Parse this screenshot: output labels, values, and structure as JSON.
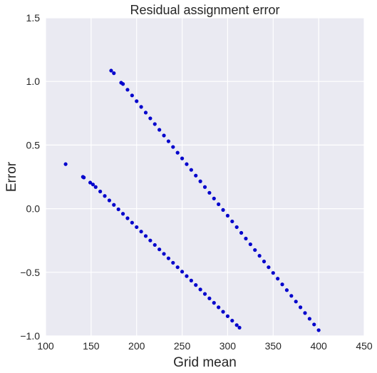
{
  "chart_data": {
    "type": "scatter",
    "title": "Residual assignment error",
    "xlabel": "Grid mean",
    "ylabel": "Error",
    "xlim": [
      100,
      450
    ],
    "ylim": [
      -1.0,
      1.5
    ],
    "x_ticks": [
      100,
      150,
      200,
      250,
      300,
      350,
      400,
      450
    ],
    "y_ticks": [
      -1.0,
      -0.5,
      0.0,
      0.5,
      1.0,
      1.5
    ],
    "x_tick_labels": [
      "100",
      "150",
      "200",
      "250",
      "300",
      "350",
      "400",
      "450"
    ],
    "y_tick_labels": [
      "−1.0",
      "−0.5",
      "0.0",
      "0.5",
      "1.0",
      "1.5"
    ],
    "grid": true,
    "background_color": "#EAEAF2",
    "point_color": "#0000CC",
    "series": [
      {
        "points": [
          [
            172,
            1.085
          ],
          [
            175,
            1.065
          ],
          [
            183,
            0.99
          ],
          [
            185,
            0.98
          ],
          [
            190,
            0.935
          ],
          [
            195,
            0.89
          ],
          [
            200,
            0.845
          ],
          [
            205,
            0.8
          ],
          [
            210,
            0.755
          ],
          [
            215,
            0.71
          ],
          [
            220,
            0.665
          ],
          [
            225,
            0.62
          ],
          [
            230,
            0.575
          ],
          [
            235,
            0.53
          ],
          [
            240,
            0.485
          ],
          [
            245,
            0.44
          ],
          [
            250,
            0.395
          ],
          [
            255,
            0.35
          ],
          [
            260,
            0.305
          ],
          [
            265,
            0.26
          ],
          [
            270,
            0.215
          ],
          [
            275,
            0.17
          ],
          [
            280,
            0.125
          ],
          [
            285,
            0.08
          ],
          [
            290,
            0.035
          ],
          [
            295,
            -0.01
          ],
          [
            300,
            -0.055
          ],
          [
            305,
            -0.1
          ],
          [
            310,
            -0.145
          ],
          [
            315,
            -0.19
          ],
          [
            320,
            -0.235
          ],
          [
            325,
            -0.28
          ],
          [
            330,
            -0.325
          ],
          [
            335,
            -0.37
          ],
          [
            340,
            -0.415
          ],
          [
            345,
            -0.46
          ],
          [
            350,
            -0.505
          ],
          [
            355,
            -0.55
          ],
          [
            360,
            -0.595
          ],
          [
            365,
            -0.64
          ],
          [
            370,
            -0.685
          ],
          [
            375,
            -0.73
          ],
          [
            380,
            -0.775
          ],
          [
            385,
            -0.82
          ],
          [
            390,
            -0.865
          ],
          [
            395,
            -0.91
          ],
          [
            400,
            -0.955
          ]
        ]
      },
      {
        "points": [
          [
            122,
            0.35
          ],
          [
            141,
            0.25
          ],
          [
            142,
            0.245
          ],
          [
            149,
            0.205
          ],
          [
            152,
            0.19
          ],
          [
            155,
            0.17
          ],
          [
            160,
            0.135
          ],
          [
            165,
            0.1
          ],
          [
            170,
            0.065
          ],
          [
            175,
            0.03
          ],
          [
            180,
            -0.005
          ],
          [
            185,
            -0.04
          ],
          [
            190,
            -0.075
          ],
          [
            195,
            -0.11
          ],
          [
            200,
            -0.145
          ],
          [
            205,
            -0.18
          ],
          [
            210,
            -0.215
          ],
          [
            215,
            -0.25
          ],
          [
            220,
            -0.285
          ],
          [
            225,
            -0.32
          ],
          [
            230,
            -0.355
          ],
          [
            235,
            -0.39
          ],
          [
            240,
            -0.425
          ],
          [
            245,
            -0.46
          ],
          [
            250,
            -0.495
          ],
          [
            255,
            -0.53
          ],
          [
            260,
            -0.565
          ],
          [
            265,
            -0.6
          ],
          [
            270,
            -0.635
          ],
          [
            275,
            -0.67
          ],
          [
            280,
            -0.705
          ],
          [
            285,
            -0.74
          ],
          [
            290,
            -0.775
          ],
          [
            295,
            -0.81
          ],
          [
            300,
            -0.845
          ],
          [
            305,
            -0.88
          ],
          [
            310,
            -0.915
          ],
          [
            313,
            -0.935
          ]
        ]
      }
    ]
  }
}
